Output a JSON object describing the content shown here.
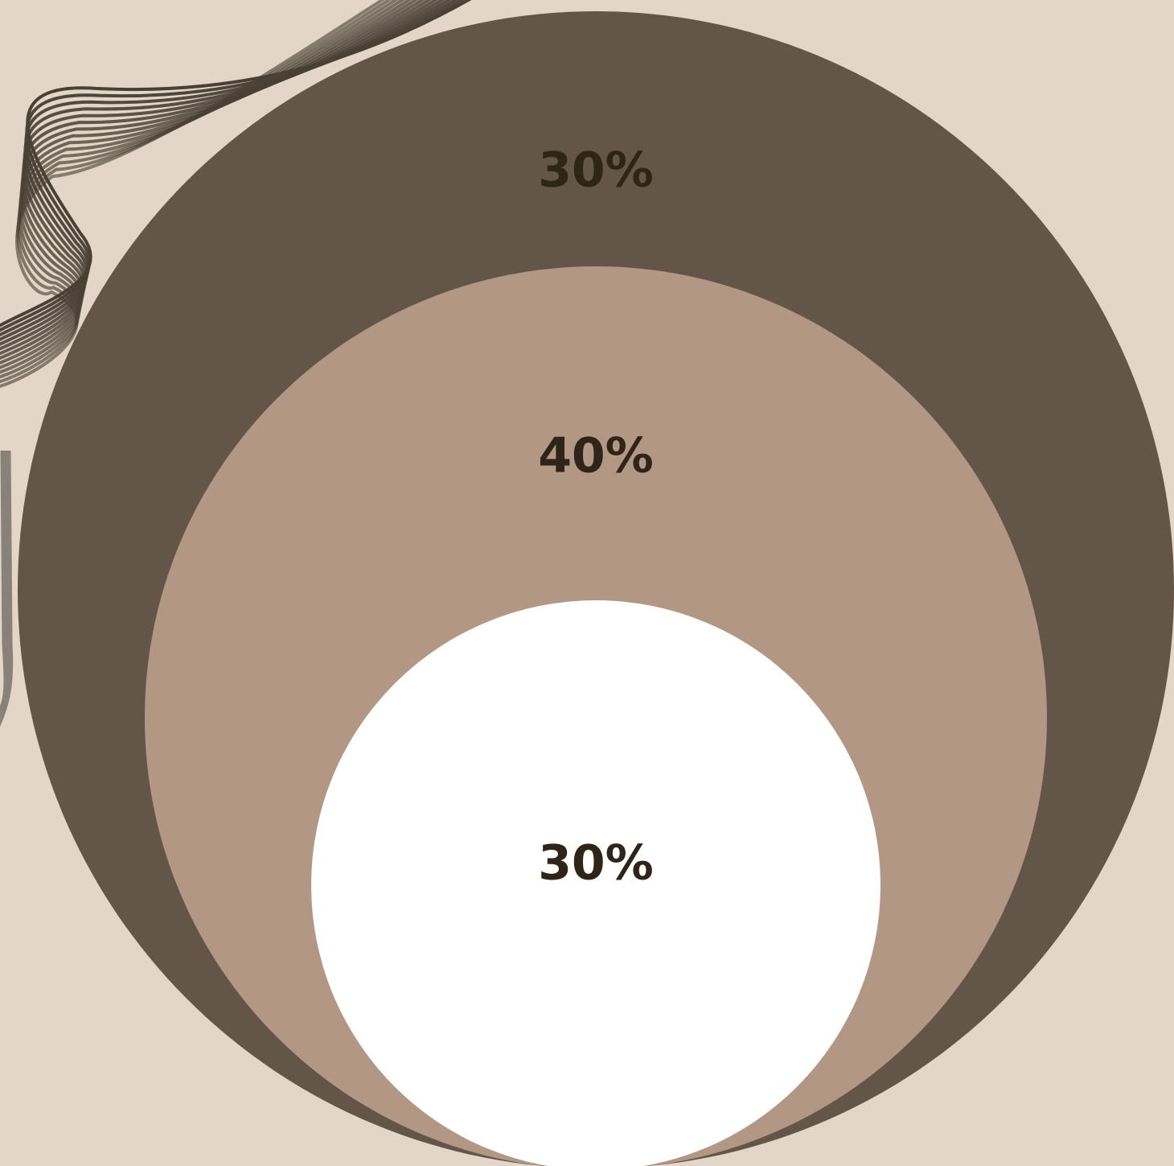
{
  "circles": [
    {
      "label": "30%"
    },
    {
      "label": "40%"
    },
    {
      "label": "30%"
    }
  ]
}
